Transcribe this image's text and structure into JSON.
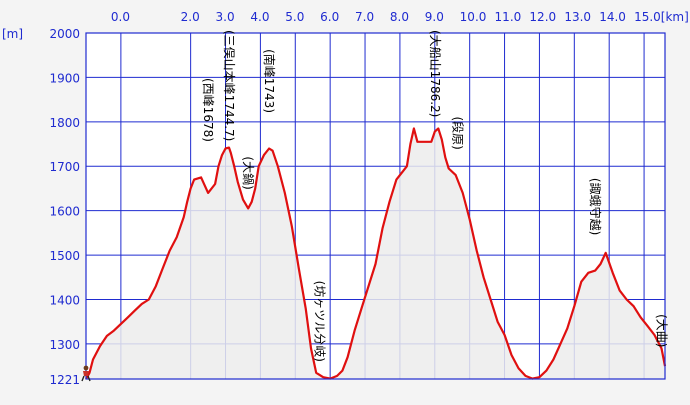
{
  "chart_data": {
    "type": "area",
    "title": "",
    "xlabel": "",
    "ylabel": "[m]",
    "x_tick_labels": [
      "0.0",
      "2.0",
      "3.0",
      "4.0",
      "5.0",
      "6.0",
      "7.0",
      "8.0",
      "9.0",
      "10.0",
      "11.0",
      "12.0",
      "13.0",
      "14.0",
      "15.0[km]"
    ],
    "y_tick_labels": [
      "2000",
      "1900",
      "1800",
      "1700",
      "1600",
      "1500",
      "1400",
      "1300",
      "1221"
    ],
    "xlim": [
      -1.0,
      15.6
    ],
    "ylim": [
      1221,
      2000
    ],
    "y_gridlines": [
      2000,
      1900,
      1800,
      1700,
      1600,
      1500,
      1400,
      1300
    ],
    "grid": true,
    "colors": {
      "line": "#e01010",
      "fill": "#ececec",
      "grid": "#1f2bd0",
      "tick": "#1f2bd0"
    },
    "series": [
      {
        "x": [
          -1.0,
          -0.9,
          -0.8,
          -0.6,
          -0.4,
          -0.2,
          0.0,
          0.2,
          0.4,
          0.6,
          0.8,
          1.0,
          1.2,
          1.4,
          1.6,
          1.8,
          1.9,
          2.0,
          2.1,
          2.3,
          2.5,
          2.7,
          2.8,
          2.9,
          3.0,
          3.1,
          3.15,
          3.25,
          3.35,
          3.5,
          3.65,
          3.75,
          3.85,
          3.95,
          4.1,
          4.25,
          4.35,
          4.5,
          4.7,
          4.9,
          5.1,
          5.3,
          5.45,
          5.6,
          5.8,
          6.0,
          6.2,
          6.35,
          6.5,
          6.7,
          6.9,
          7.1,
          7.3,
          7.5,
          7.7,
          7.9,
          8.1,
          8.2,
          8.3,
          8.4,
          8.5,
          8.7,
          8.9,
          9.0,
          9.1,
          9.2,
          9.3,
          9.4,
          9.6,
          9.8,
          10.0,
          10.2,
          10.4,
          10.6,
          10.8,
          11.0,
          11.2,
          11.4,
          11.6,
          11.8,
          12.0,
          12.2,
          12.4,
          12.6,
          12.8,
          13.0,
          13.2,
          13.4,
          13.6,
          13.75,
          13.9,
          14.1,
          14.3,
          14.5,
          14.7,
          14.9,
          15.1,
          15.3,
          15.5,
          15.6
        ],
        "y": [
          1221,
          1235,
          1265,
          1295,
          1318,
          1330,
          1345,
          1360,
          1375,
          1390,
          1400,
          1430,
          1470,
          1510,
          1540,
          1585,
          1620,
          1650,
          1670,
          1675,
          1640,
          1660,
          1700,
          1725,
          1740,
          1742,
          1730,
          1700,
          1665,
          1625,
          1605,
          1620,
          1650,
          1700,
          1725,
          1740,
          1735,
          1700,
          1640,
          1565,
          1470,
          1380,
          1290,
          1235,
          1225,
          1222,
          1228,
          1240,
          1270,
          1330,
          1380,
          1430,
          1480,
          1560,
          1620,
          1670,
          1690,
          1700,
          1750,
          1785,
          1755,
          1755,
          1755,
          1778,
          1785,
          1760,
          1720,
          1695,
          1680,
          1640,
          1580,
          1510,
          1450,
          1400,
          1350,
          1320,
          1275,
          1245,
          1228,
          1222,
          1225,
          1240,
          1265,
          1300,
          1335,
          1385,
          1440,
          1460,
          1465,
          1480,
          1505,
          1460,
          1420,
          1400,
          1385,
          1360,
          1340,
          1320,
          1290,
          1250
        ]
      }
    ],
    "annotations": [
      {
        "x": 2.5,
        "y": 1678,
        "text": "(西峰1678)"
      },
      {
        "x": 3.1,
        "y": 1744.7,
        "text": "(三俣山本峰1744.7)"
      },
      {
        "x": 3.65,
        "y": 1605,
        "text": "(大鍋)"
      },
      {
        "x": 4.25,
        "y": 1743,
        "text": "(南峰1743)"
      },
      {
        "x": 5.7,
        "y": 1222,
        "text": "(坊ヶツル分岐)"
      },
      {
        "x": 9.0,
        "y": 1786.2,
        "text": "(大船山1786.2)"
      },
      {
        "x": 9.65,
        "y": 1695,
        "text": "(段原)"
      },
      {
        "x": 13.6,
        "y": 1505,
        "text": "(諏蛾守越)"
      },
      {
        "x": 15.5,
        "y": 1250,
        "text": "(大曲)"
      }
    ]
  }
}
